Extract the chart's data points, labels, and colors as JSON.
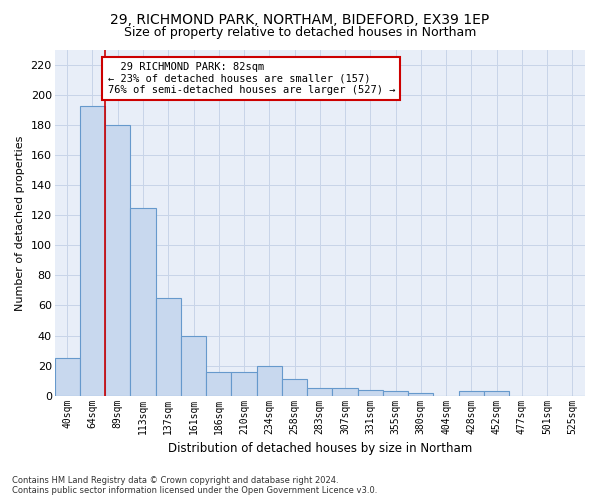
{
  "title_line1": "29, RICHMOND PARK, NORTHAM, BIDEFORD, EX39 1EP",
  "title_line2": "Size of property relative to detached houses in Northam",
  "xlabel": "Distribution of detached houses by size in Northam",
  "ylabel": "Number of detached properties",
  "footnote": "Contains HM Land Registry data © Crown copyright and database right 2024.\nContains public sector information licensed under the Open Government Licence v3.0.",
  "bar_labels": [
    "40sqm",
    "64sqm",
    "89sqm",
    "113sqm",
    "137sqm",
    "161sqm",
    "186sqm",
    "210sqm",
    "234sqm",
    "258sqm",
    "283sqm",
    "307sqm",
    "331sqm",
    "355sqm",
    "380sqm",
    "404sqm",
    "428sqm",
    "452sqm",
    "477sqm",
    "501sqm",
    "525sqm"
  ],
  "bar_values": [
    25,
    193,
    180,
    125,
    65,
    40,
    16,
    16,
    20,
    11,
    5,
    5,
    4,
    3,
    2,
    0,
    3,
    3,
    0,
    0,
    0
  ],
  "bar_color": "#c8d8ee",
  "bar_edgecolor": "#6699cc",
  "property_line_x": 1.5,
  "property_line_color": "#cc0000",
  "annotation_text": "  29 RICHMOND PARK: 82sqm\n← 23% of detached houses are smaller (157)\n76% of semi-detached houses are larger (527) →",
  "annotation_box_color": "#ffffff",
  "annotation_box_edgecolor": "#cc0000",
  "ylim": [
    0,
    230
  ],
  "yticks": [
    0,
    20,
    40,
    60,
    80,
    100,
    120,
    140,
    160,
    180,
    200,
    220
  ],
  "grid_color": "#c8d4e8",
  "background_color": "#e8eef8",
  "title_fontsize": 10,
  "subtitle_fontsize": 9,
  "footnote_fontsize": 6
}
